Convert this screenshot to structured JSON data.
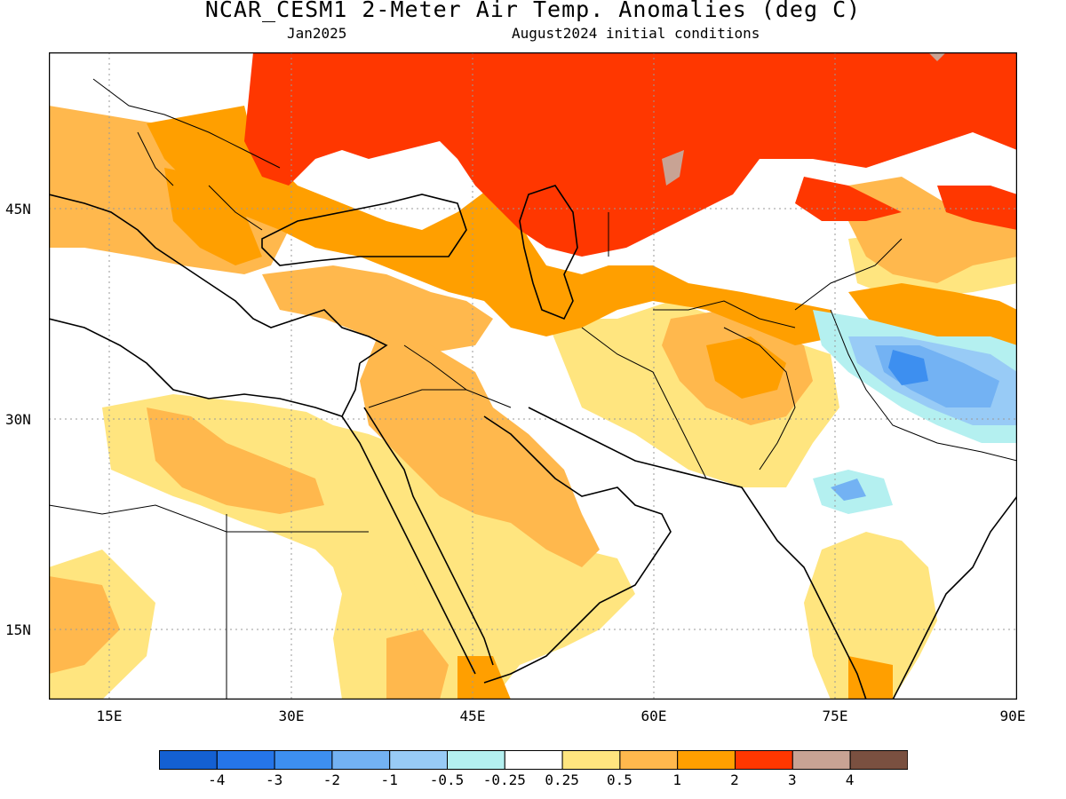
{
  "header": {
    "title": "NCAR_CESM1 2-Meter Air Temp. Anomalies (deg C)",
    "valid_month": "Jan2025",
    "init": "August2024 initial conditions"
  },
  "axes": {
    "lat_labels": [
      "45N",
      "30N",
      "15N"
    ],
    "lon_labels": [
      "15E",
      "30E",
      "45E",
      "60E",
      "75E",
      "90E"
    ]
  },
  "colorbar": {
    "colors": [
      "#1460d2",
      "#2575e8",
      "#3d8ff0",
      "#73b2f3",
      "#98cbf6",
      "#b4f0f0",
      "#ffffff",
      "#ffe57f",
      "#ffb84d",
      "#ff9f00",
      "#ff3700",
      "#c8a394",
      "#7a5040"
    ],
    "labels": [
      "-4",
      "-3",
      "-2",
      "-1",
      "-0.5",
      "-0.25",
      "0.25",
      "0.5",
      "1",
      "2",
      "3",
      "4"
    ]
  }
}
